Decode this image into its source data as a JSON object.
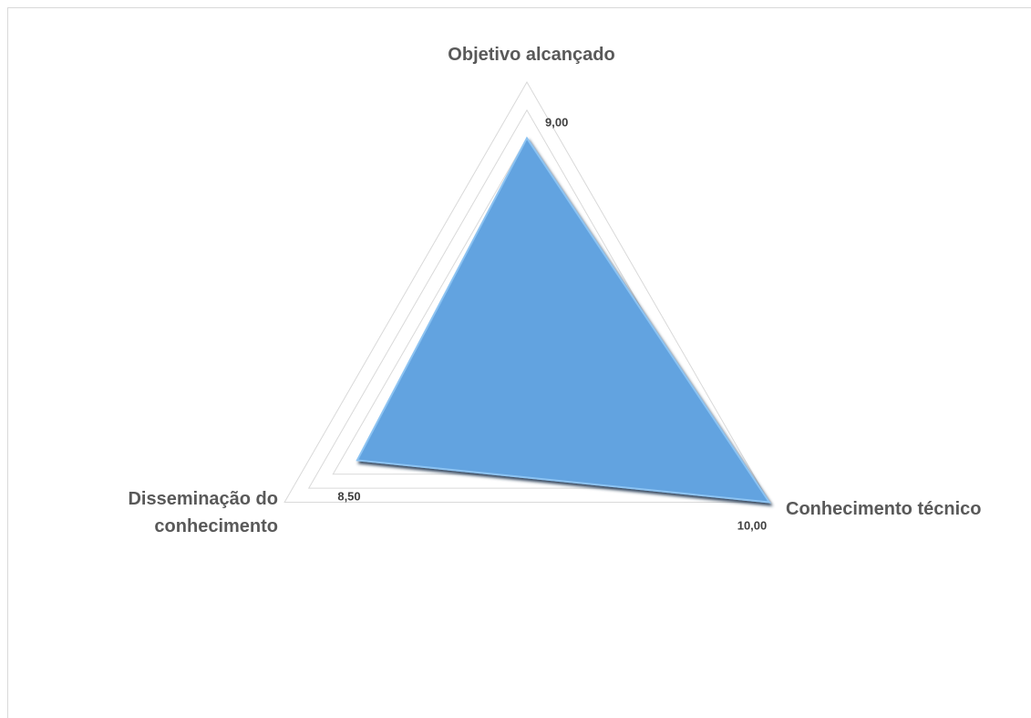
{
  "chart_data": {
    "type": "radar",
    "categories": [
      "Objetivo alcançado",
      "Conhecimento técnico",
      "Disseminação do conhecimento"
    ],
    "values": [
      9,
      10,
      8.5
    ],
    "value_labels": [
      "9,00",
      "10,00",
      "8,50"
    ],
    "color": "#62a3e0",
    "ylim": [
      5,
      10
    ],
    "yticks": [
      5,
      5.5,
      6,
      6.5,
      7,
      7.5,
      8,
      8.5,
      9,
      9.5,
      10
    ],
    "grid": true
  }
}
